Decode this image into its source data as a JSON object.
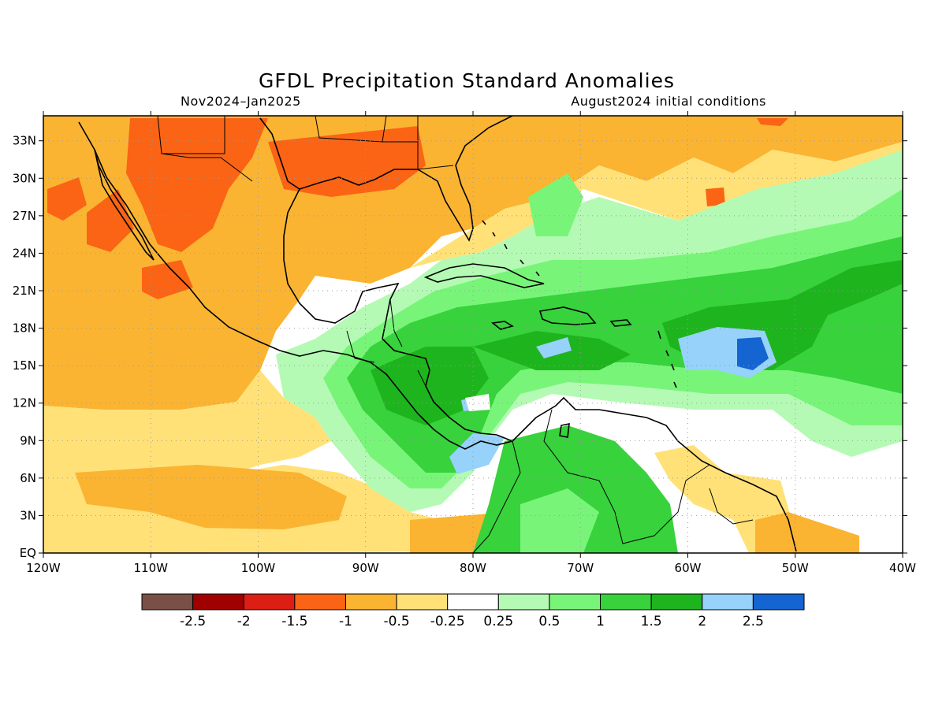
{
  "title": "GFDL Precipitation Standard Anomalies",
  "subtitle_left": "Nov2024–Jan2025",
  "subtitle_right": "August2024 initial conditions",
  "map": {
    "lon_range": [
      -120,
      -40
    ],
    "lat_range": [
      0,
      35
    ],
    "grid": "dotted",
    "lat_labels": [
      "EQ",
      "3N",
      "6N",
      "9N",
      "12N",
      "15N",
      "18N",
      "21N",
      "24N",
      "27N",
      "30N",
      "33N"
    ],
    "lon_labels": [
      "120W",
      "110W",
      "100W",
      "90W",
      "80W",
      "70W",
      "60W",
      "50W",
      "40W"
    ]
  },
  "colorbar": {
    "colors": [
      "#7a4f45",
      "#a00000",
      "#dc1e14",
      "#fa6414",
      "#fab432",
      "#ffe178",
      "#ffffff",
      "#b4fab4",
      "#78f578",
      "#37d23c",
      "#1eb41e",
      "#96d2fa",
      "#1464d2"
    ],
    "labels": [
      "-2.5",
      "-2",
      "-1.5",
      "-1",
      "-0.5",
      "-0.25",
      "0.25",
      "0.5",
      "1",
      "1.5",
      "2",
      "2.5"
    ]
  }
}
